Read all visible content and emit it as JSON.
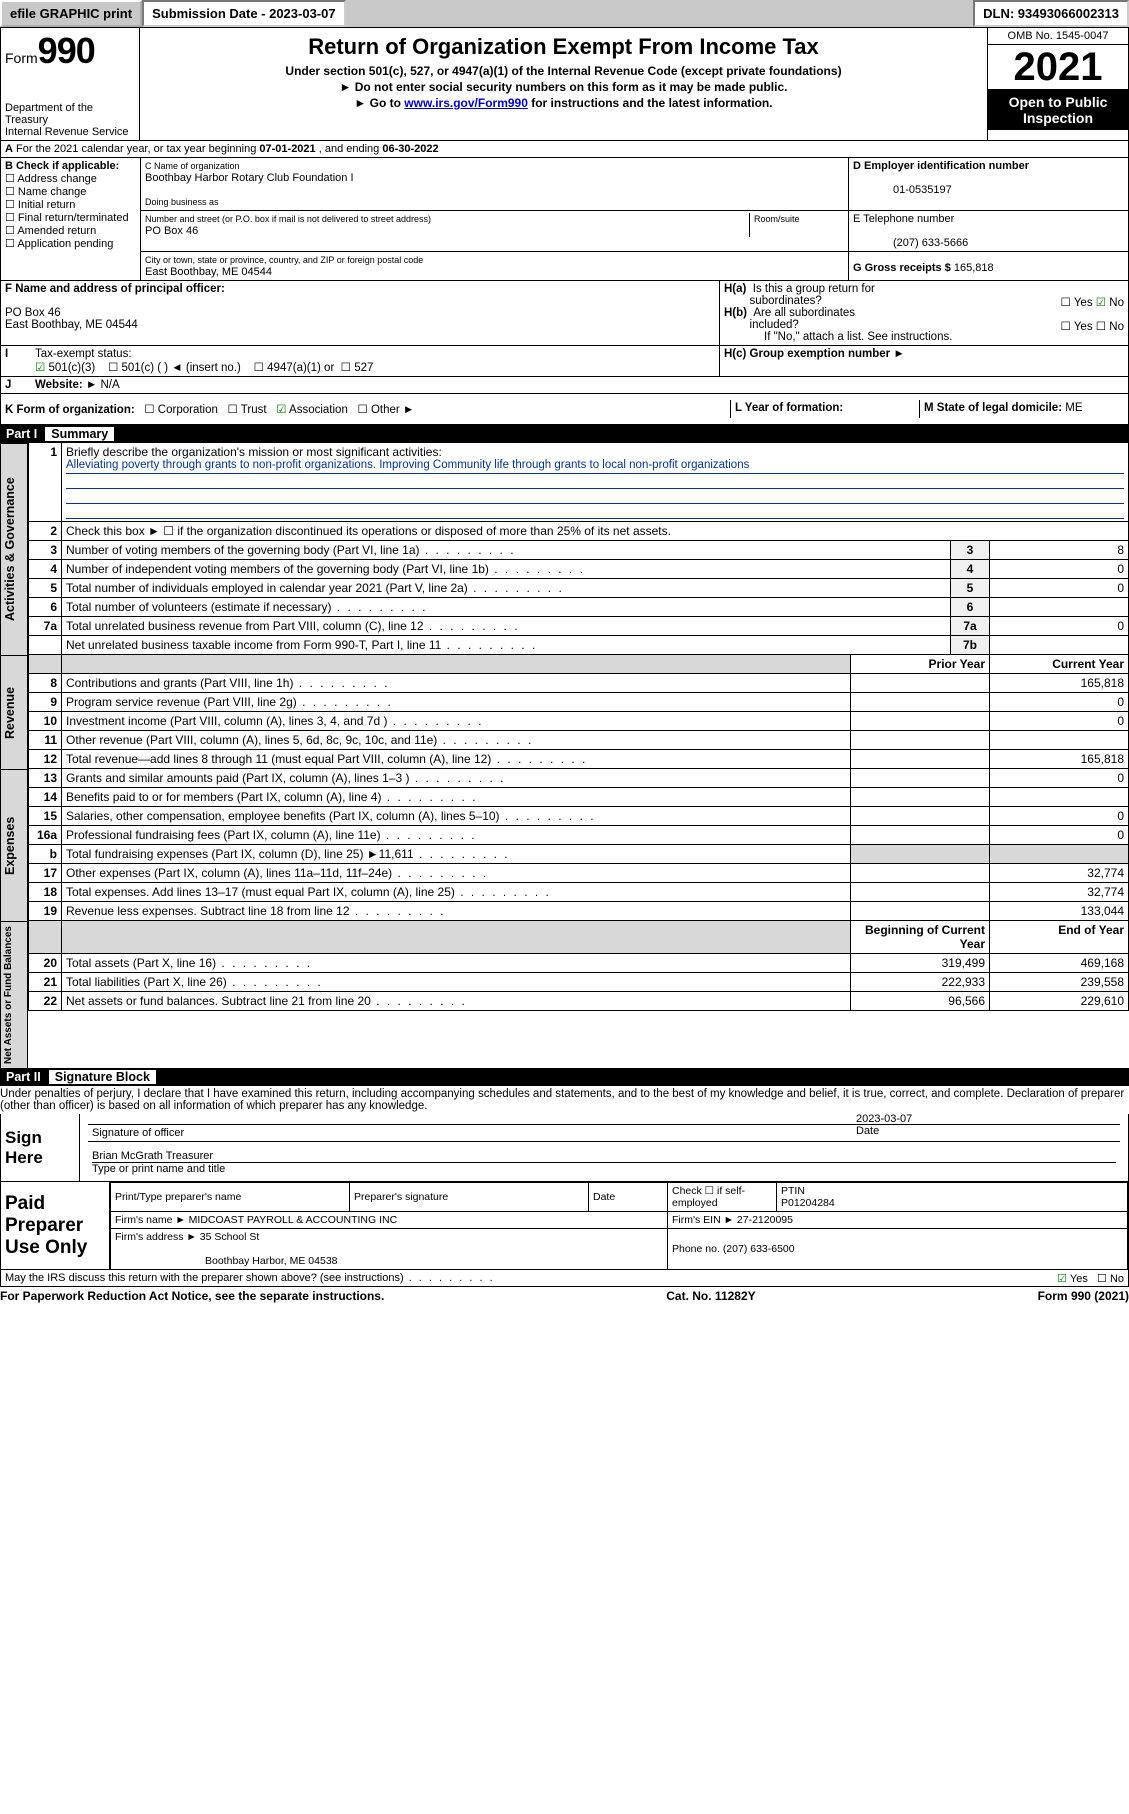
{
  "topbar": {
    "efile": "efile GRAPHIC print",
    "submission_label": "Submission Date - 2023-03-07",
    "dln": "DLN: 93493066002313"
  },
  "header": {
    "form_label": "Form",
    "form_number": "990",
    "dept": "Department of the Treasury",
    "irs": "Internal Revenue Service",
    "title": "Return of Organization Exempt From Income Tax",
    "sub1": "Under section 501(c), 527, or 4947(a)(1) of the Internal Revenue Code (except private foundations)",
    "sub2": "► Do not enter social security numbers on this form as it may be made public.",
    "sub3_pre": "► Go to ",
    "sub3_link": "www.irs.gov/Form990",
    "sub3_post": " for instructions and the latest information.",
    "omb": "OMB No. 1545-0047",
    "year": "2021",
    "open": "Open to Public Inspection"
  },
  "line_a": {
    "text_pre": "For the 2021 calendar year, or tax year beginning ",
    "begin": "07-01-2021",
    "mid": "   , and ending ",
    "end": "06-30-2022"
  },
  "block_b": {
    "title": "B Check if applicable:",
    "items": [
      "Address change",
      "Name change",
      "Initial return",
      "Final return/terminated",
      "Amended return",
      "Application pending"
    ]
  },
  "block_c": {
    "label_name": "C Name of organization",
    "name": "Boothbay Harbor Rotary Club Foundation I",
    "dba_label": "Doing business as",
    "addr_label": "Number and street (or P.O. box if mail is not delivered to street address)",
    "room_label": "Room/suite",
    "addr": "PO Box 46",
    "city_label": "City or town, state or province, country, and ZIP or foreign postal code",
    "city": "East Boothbay, ME  04544"
  },
  "block_d": {
    "label": "D Employer identification number",
    "value": "01-0535197",
    "e_label": "E Telephone number",
    "e_value": "(207) 633-5666",
    "g_label": "G Gross receipts $",
    "g_value": "165,818"
  },
  "block_f": {
    "label": "F  Name and address of principal officer:",
    "line1": "PO Box 46",
    "line2": "East Boothbay, ME  04544"
  },
  "block_h": {
    "a_label": "H(a)  Is this a group return for subordinates?",
    "a_yes": "Yes",
    "a_no": "No",
    "b_label": "H(b)  Are all subordinates included?",
    "b_yes": "Yes",
    "b_no": "No",
    "b_note": "If \"No,\" attach a list. See instructions.",
    "c_label": "H(c)  Group exemption number ►"
  },
  "tax_status": {
    "label": "Tax-exempt status:",
    "opt1": "501(c)(3)",
    "opt2": "501(c) (   ) ◄ (insert no.)",
    "opt3": "4947(a)(1) or",
    "opt4": "527"
  },
  "website": {
    "label": "Website: ►",
    "value": "N/A"
  },
  "k": {
    "label": "K Form of organization:",
    "opts": [
      "Corporation",
      "Trust",
      "Association",
      "Other ►"
    ],
    "checked_idx": 2
  },
  "l": {
    "label": "L Year of formation:",
    "value": ""
  },
  "m": {
    "label": "M State of legal domicile:",
    "value": "ME"
  },
  "part1": {
    "num": "Part I",
    "title": "Summary"
  },
  "summary": {
    "line1_label": "Briefly describe the organization's mission or most significant activities:",
    "mission": "Alleviating poverty through grants to non-profit organizations. Improving Community life through grants to local non-profit organizations",
    "line2": "Check this box ►  ☐  if the organization discontinued its operations or disposed of more than 25% of its net assets.",
    "rows_gov": [
      {
        "n": "3",
        "t": "Number of voting members of the governing body (Part VI, line 1a)",
        "box": "3",
        "v": "8"
      },
      {
        "n": "4",
        "t": "Number of independent voting members of the governing body (Part VI, line 1b)",
        "box": "4",
        "v": "0"
      },
      {
        "n": "5",
        "t": "Total number of individuals employed in calendar year 2021 (Part V, line 2a)",
        "box": "5",
        "v": "0"
      },
      {
        "n": "6",
        "t": "Total number of volunteers (estimate if necessary)",
        "box": "6",
        "v": ""
      },
      {
        "n": "7a",
        "t": "Total unrelated business revenue from Part VIII, column (C), line 12",
        "box": "7a",
        "v": "0"
      },
      {
        "n": "",
        "t": "Net unrelated business taxable income from Form 990-T, Part I, line 11",
        "box": "7b",
        "v": ""
      }
    ],
    "hdr_prior": "Prior Year",
    "hdr_current": "Current Year",
    "rows_rev": [
      {
        "n": "8",
        "t": "Contributions and grants (Part VIII, line 1h)",
        "p": "",
        "c": "165,818"
      },
      {
        "n": "9",
        "t": "Program service revenue (Part VIII, line 2g)",
        "p": "",
        "c": "0"
      },
      {
        "n": "10",
        "t": "Investment income (Part VIII, column (A), lines 3, 4, and 7d )",
        "p": "",
        "c": "0"
      },
      {
        "n": "11",
        "t": "Other revenue (Part VIII, column (A), lines 5, 6d, 8c, 9c, 10c, and 11e)",
        "p": "",
        "c": ""
      },
      {
        "n": "12",
        "t": "Total revenue—add lines 8 through 11 (must equal Part VIII, column (A), line 12)",
        "p": "",
        "c": "165,818"
      }
    ],
    "rows_exp": [
      {
        "n": "13",
        "t": "Grants and similar amounts paid (Part IX, column (A), lines 1–3 )",
        "p": "",
        "c": "0"
      },
      {
        "n": "14",
        "t": "Benefits paid to or for members (Part IX, column (A), line 4)",
        "p": "",
        "c": ""
      },
      {
        "n": "15",
        "t": "Salaries, other compensation, employee benefits (Part IX, column (A), lines 5–10)",
        "p": "",
        "c": "0"
      },
      {
        "n": "16a",
        "t": "Professional fundraising fees (Part IX, column (A), line 11e)",
        "p": "",
        "c": "0"
      },
      {
        "n": "b",
        "t": "Total fundraising expenses (Part IX, column (D), line 25) ►11,611",
        "p": "gray",
        "c": "gray"
      },
      {
        "n": "17",
        "t": "Other expenses (Part IX, column (A), lines 11a–11d, 11f–24e)",
        "p": "",
        "c": "32,774"
      },
      {
        "n": "18",
        "t": "Total expenses. Add lines 13–17 (must equal Part IX, column (A), line 25)",
        "p": "",
        "c": "32,774"
      },
      {
        "n": "19",
        "t": "Revenue less expenses. Subtract line 18 from line 12",
        "p": "",
        "c": "133,044"
      }
    ],
    "hdr_begin": "Beginning of Current Year",
    "hdr_end": "End of Year",
    "rows_net": [
      {
        "n": "20",
        "t": "Total assets (Part X, line 16)",
        "p": "319,499",
        "c": "469,168"
      },
      {
        "n": "21",
        "t": "Total liabilities (Part X, line 26)",
        "p": "222,933",
        "c": "239,558"
      },
      {
        "n": "22",
        "t": "Net assets or fund balances. Subtract line 21 from line 20",
        "p": "96,566",
        "c": "229,610"
      }
    ],
    "vtabs": {
      "gov": "Activities & Governance",
      "rev": "Revenue",
      "exp": "Expenses",
      "net": "Net Assets or Fund Balances"
    }
  },
  "part2": {
    "num": "Part II",
    "title": "Signature Block"
  },
  "perjury": "Under penalties of perjury, I declare that I have examined this return, including accompanying schedules and statements, and to the best of my knowledge and belief, it is true, correct, and complete. Declaration of preparer (other than officer) is based on all information of which preparer has any knowledge.",
  "sign": {
    "here": "Sign Here",
    "sig_label": "Signature of officer",
    "date_label": "Date",
    "date": "2023-03-07",
    "name": "Brian McGrath Treasurer",
    "name_label": "Type or print name and title"
  },
  "preparer": {
    "title": "Paid Preparer Use Only",
    "h1": "Print/Type preparer's name",
    "h2": "Preparer's signature",
    "h3": "Date",
    "h4_pre": "Check ☐ if self-employed",
    "h5": "PTIN",
    "ptin": "P01204284",
    "firm_name_label": "Firm's name    ►",
    "firm_name": "MIDCOAST PAYROLL & ACCOUNTING INC",
    "firm_ein_label": "Firm's EIN ►",
    "firm_ein": "27-2120095",
    "firm_addr_label": "Firm's address ►",
    "firm_addr1": "35 School St",
    "firm_addr2": "Boothbay Harbor, ME  04538",
    "phone_label": "Phone no.",
    "phone": "(207) 633-6500"
  },
  "discuss": {
    "text": "May the IRS discuss this return with the preparer shown above? (see instructions)",
    "yes": "Yes",
    "no": "No"
  },
  "footer": {
    "left": "For Paperwork Reduction Act Notice, see the separate instructions.",
    "mid": "Cat. No. 11282Y",
    "right": "Form 990 (2021)"
  },
  "i_label": "I",
  "j_label": "J",
  "a_label": "A"
}
